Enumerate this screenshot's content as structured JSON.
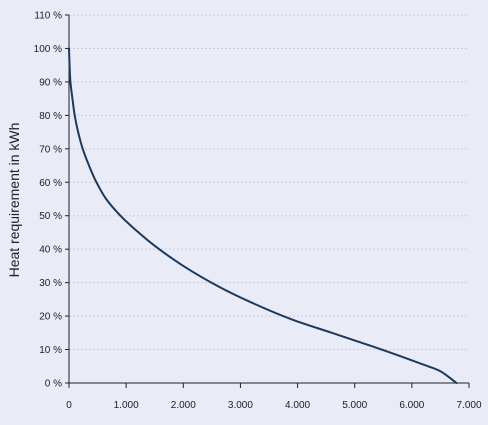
{
  "chart_data": {
    "type": "line",
    "title": "",
    "xlabel": "",
    "ylabel": "Heat requirement in kWh",
    "xlim": [
      0,
      7000
    ],
    "ylim": [
      0,
      110
    ],
    "x_ticks": [
      {
        "value": 0,
        "label": "0"
      },
      {
        "value": 1000,
        "label": "1.000"
      },
      {
        "value": 2000,
        "label": "2.000"
      },
      {
        "value": 3000,
        "label": "3.000"
      },
      {
        "value": 4000,
        "label": "4.000"
      },
      {
        "value": 5000,
        "label": "5.000"
      },
      {
        "value": 6000,
        "label": "6.000"
      },
      {
        "value": 7000,
        "label": "7.000"
      }
    ],
    "y_ticks": [
      {
        "value": 0,
        "label": "0 %"
      },
      {
        "value": 10,
        "label": "10 %"
      },
      {
        "value": 20,
        "label": "20 %"
      },
      {
        "value": 30,
        "label": "30 %"
      },
      {
        "value": 40,
        "label": "40 %"
      },
      {
        "value": 50,
        "label": "50 %"
      },
      {
        "value": 60,
        "label": "60 %"
      },
      {
        "value": 70,
        "label": "70 %"
      },
      {
        "value": 80,
        "label": "80 %"
      },
      {
        "value": 90,
        "label": "90 %"
      },
      {
        "value": 100,
        "label": "100 %"
      },
      {
        "value": 110,
        "label": "110 %"
      }
    ],
    "grid": true,
    "series": [
      {
        "color": "#1b3a5c",
        "points": [
          [
            0,
            100
          ],
          [
            10,
            95
          ],
          [
            25,
            90
          ],
          [
            60,
            85
          ],
          [
            100,
            80
          ],
          [
            160,
            75
          ],
          [
            240,
            70
          ],
          [
            350,
            65
          ],
          [
            480,
            60
          ],
          [
            650,
            55
          ],
          [
            900,
            50
          ],
          [
            1150,
            46
          ],
          [
            1500,
            41
          ],
          [
            2000,
            35
          ],
          [
            2600,
            29
          ],
          [
            3200,
            24
          ],
          [
            3900,
            19
          ],
          [
            4600,
            15
          ],
          [
            5300,
            11
          ],
          [
            5800,
            8
          ],
          [
            6200,
            5.5
          ],
          [
            6500,
            3.5
          ],
          [
            6780,
            0
          ]
        ]
      }
    ]
  }
}
